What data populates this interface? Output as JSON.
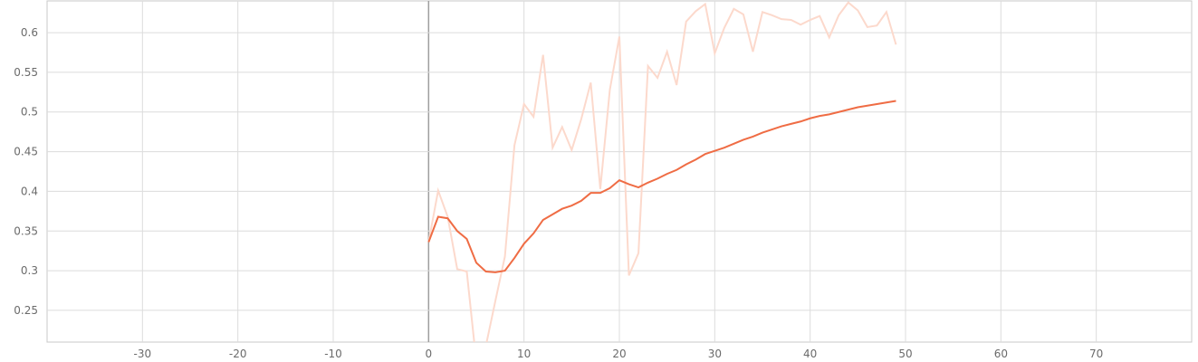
{
  "colors": {
    "smoothed": "#ef6c44",
    "raw": "#fcd9cc",
    "grid": "#dcdcdc",
    "zero_line": "#9e9e9e",
    "tick_text": "#6b6b6b"
  },
  "chart_data": {
    "type": "line",
    "title": "",
    "xlabel": "",
    "ylabel": "",
    "xlim": [
      -40,
      80
    ],
    "ylim": [
      0.21,
      0.64
    ],
    "grid": true,
    "x_ticks": [
      -30,
      -20,
      -10,
      0,
      10,
      20,
      30,
      40,
      50,
      60,
      70
    ],
    "x_tick_labels": [
      "-30",
      "-20",
      "-10",
      "0",
      "10",
      "20",
      "30",
      "40",
      "50",
      "60",
      "70"
    ],
    "y_ticks": [
      0.25,
      0.3,
      0.35,
      0.4,
      0.45,
      0.5,
      0.55,
      0.6
    ],
    "y_tick_labels": [
      "0.25",
      "0.3",
      "0.35",
      "0.4",
      "0.45",
      "0.5",
      "0.55",
      "0.6"
    ],
    "series": [
      {
        "role": "raw",
        "x": [
          0,
          1,
          2,
          3,
          4,
          5,
          6,
          7,
          8,
          9,
          10,
          11,
          12,
          13,
          14,
          15,
          16,
          17,
          18,
          19,
          20,
          21,
          22,
          23,
          24,
          25,
          26,
          27,
          28,
          29,
          30,
          31,
          32,
          33,
          34,
          35,
          36,
          37,
          38,
          39,
          40,
          41,
          42,
          43,
          44,
          45,
          46,
          47,
          48,
          49
        ],
        "values": [
          0.336,
          0.401,
          0.368,
          0.302,
          0.299,
          0.185,
          0.205,
          0.262,
          0.318,
          0.458,
          0.51,
          0.494,
          0.572,
          0.455,
          0.481,
          0.452,
          0.491,
          0.537,
          0.403,
          0.528,
          0.595,
          0.294,
          0.322,
          0.558,
          0.543,
          0.576,
          0.534,
          0.614,
          0.627,
          0.636,
          0.574,
          0.606,
          0.63,
          0.623,
          0.576,
          0.626,
          0.622,
          0.617,
          0.616,
          0.61,
          0.616,
          0.621,
          0.594,
          0.622,
          0.638,
          0.628,
          0.607,
          0.609,
          0.626,
          0.585
        ]
      },
      {
        "role": "smoothed",
        "x": [
          0,
          1,
          2,
          3,
          4,
          5,
          6,
          7,
          8,
          9,
          10,
          11,
          12,
          13,
          14,
          15,
          16,
          17,
          18,
          19,
          20,
          21,
          22,
          23,
          24,
          25,
          26,
          27,
          28,
          29,
          30,
          31,
          32,
          33,
          34,
          35,
          36,
          37,
          38,
          39,
          40,
          41,
          42,
          43,
          44,
          45,
          46,
          47,
          48,
          49
        ],
        "values": [
          0.336,
          0.368,
          0.366,
          0.35,
          0.34,
          0.31,
          0.299,
          0.298,
          0.3,
          0.316,
          0.334,
          0.347,
          0.364,
          0.371,
          0.378,
          0.382,
          0.388,
          0.398,
          0.398,
          0.404,
          0.414,
          0.409,
          0.405,
          0.411,
          0.416,
          0.422,
          0.427,
          0.434,
          0.44,
          0.447,
          0.451,
          0.455,
          0.46,
          0.465,
          0.469,
          0.474,
          0.478,
          0.482,
          0.485,
          0.488,
          0.492,
          0.495,
          0.497,
          0.5,
          0.503,
          0.506,
          0.508,
          0.51,
          0.512,
          0.514
        ]
      }
    ]
  }
}
